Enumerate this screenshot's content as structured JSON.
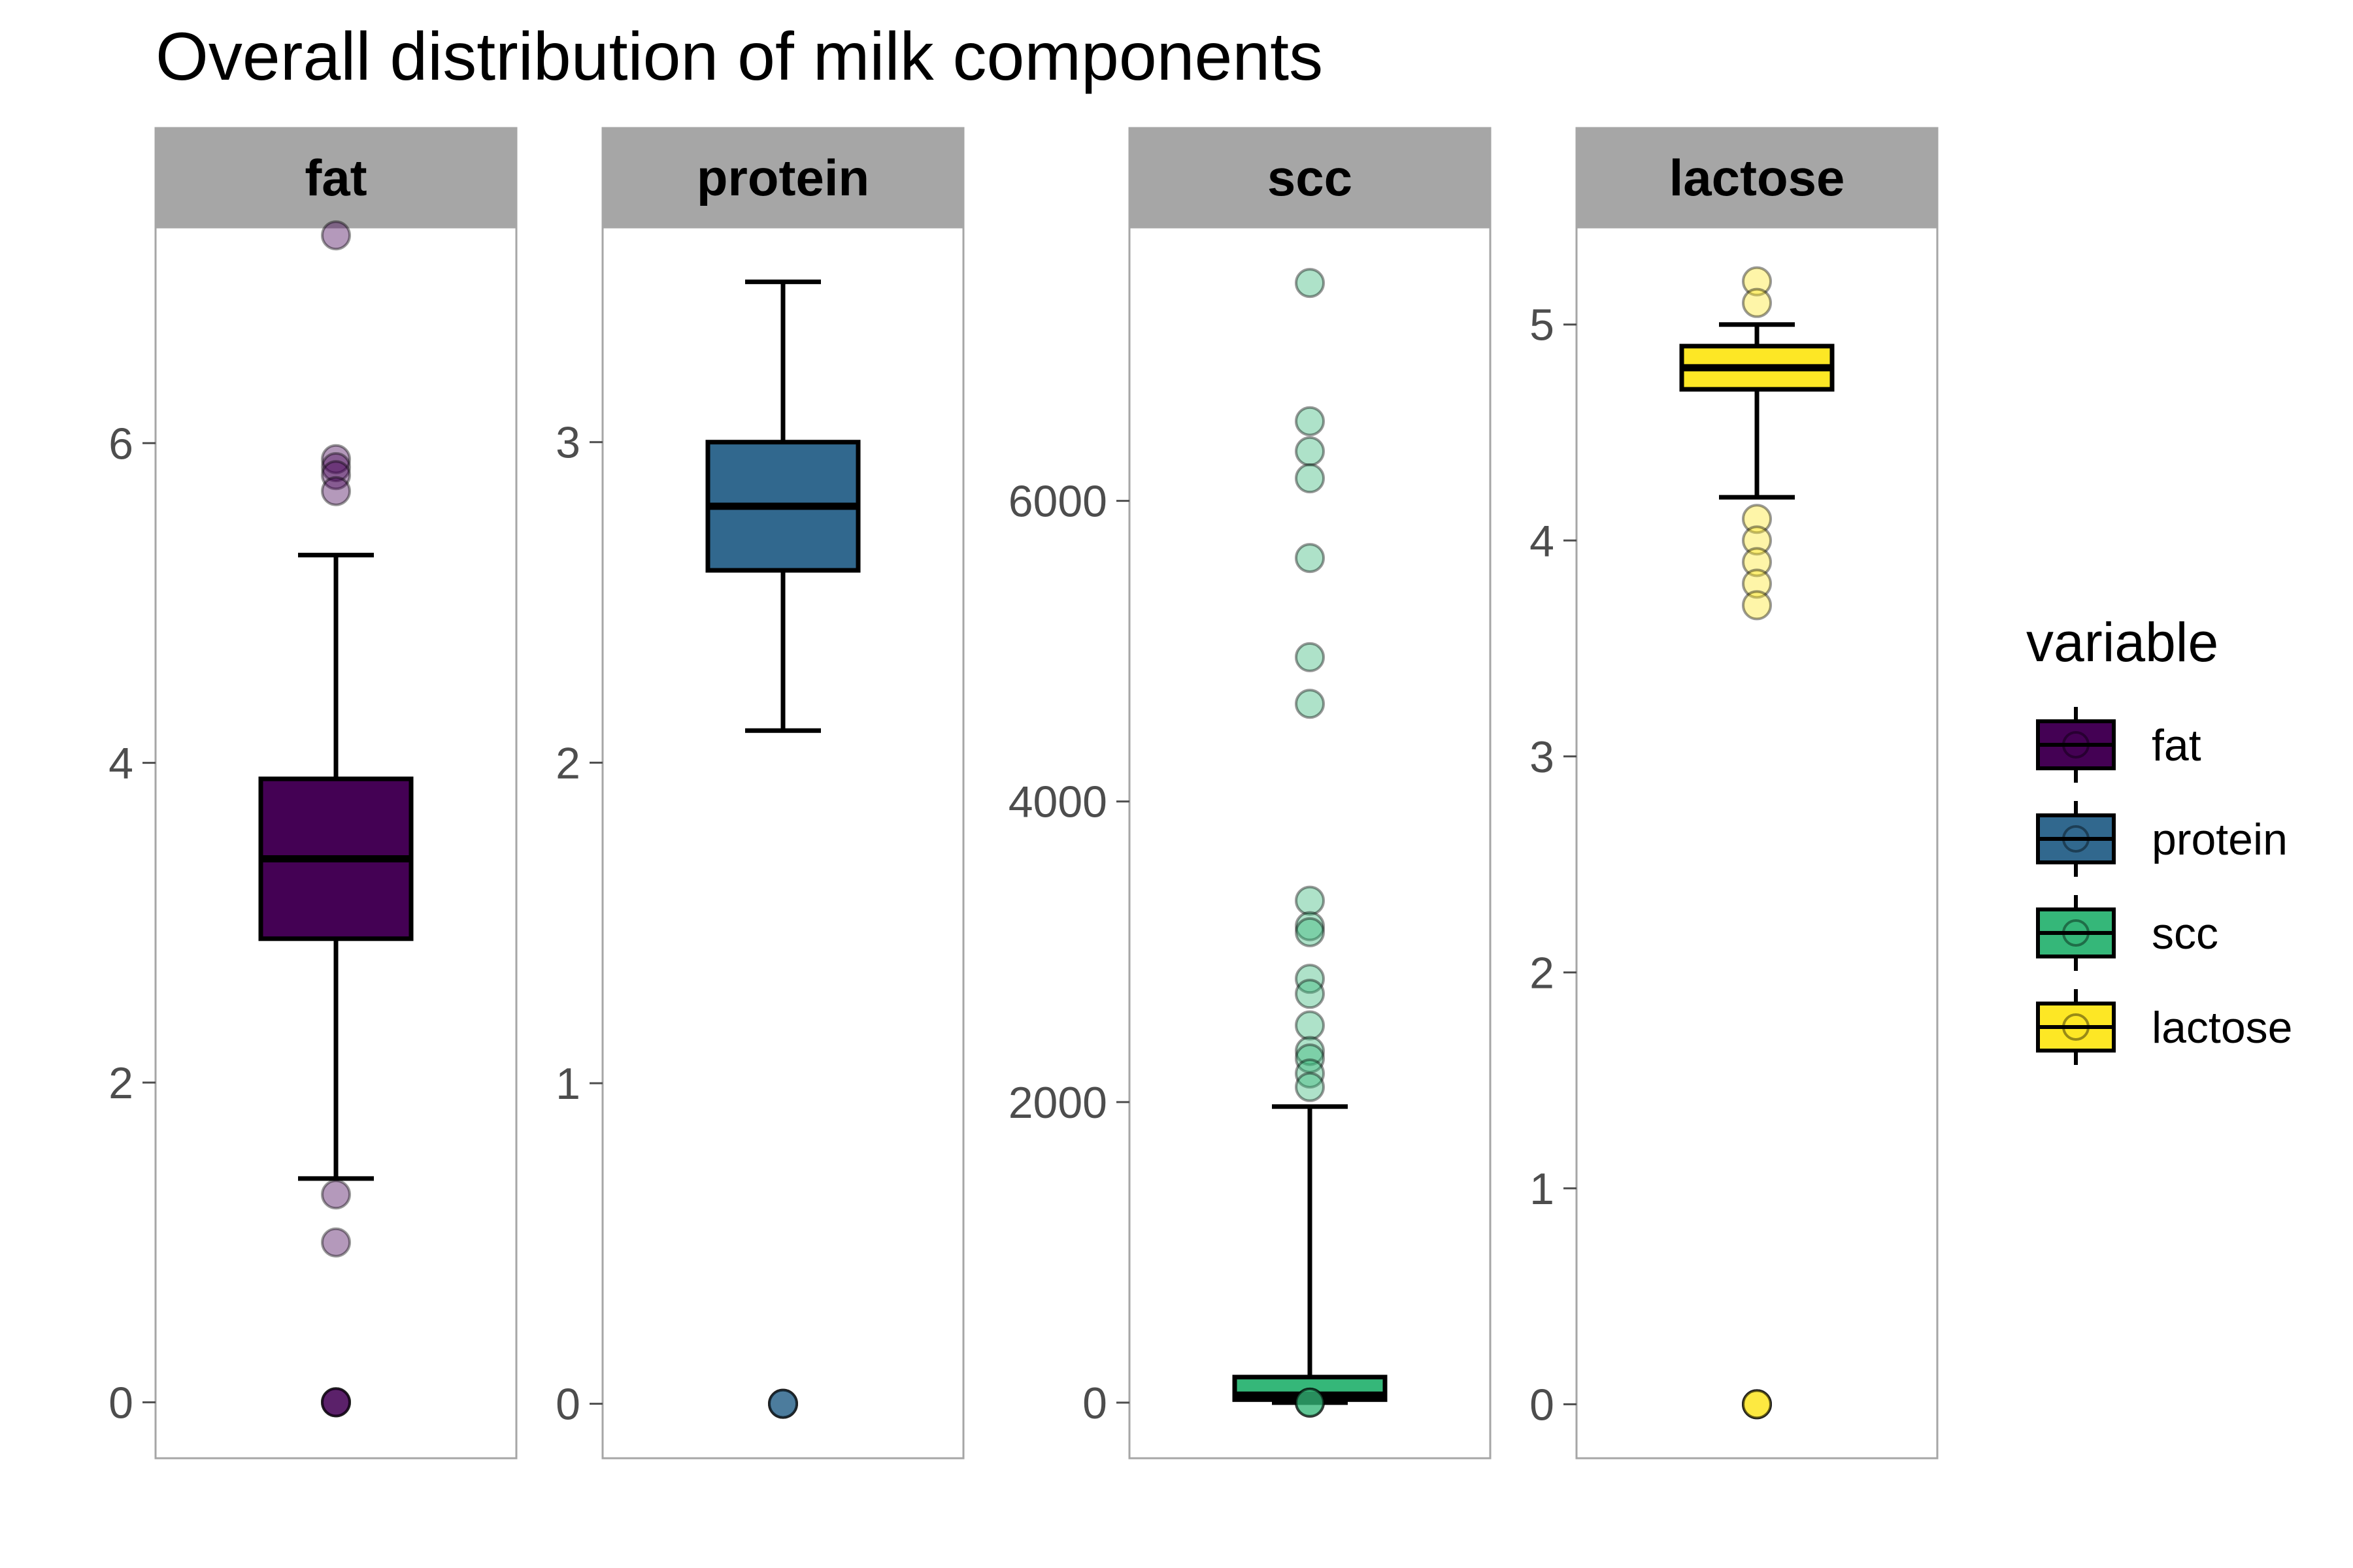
{
  "chart_data": {
    "type": "boxplot",
    "title": "Overall distribution of milk components",
    "facet_scales": "free_y",
    "legend": {
      "title": "variable",
      "position": "right",
      "entries": [
        "fat",
        "protein",
        "scc",
        "lactose"
      ]
    },
    "panels": [
      {
        "name": "fat",
        "color": "#440154",
        "ylim": [
          -0.35,
          7.35
        ],
        "y_ticks": [
          0,
          2,
          4,
          6
        ],
        "y_tick_labels": [
          "0",
          "2",
          "4",
          "6"
        ],
        "box": {
          "lower_whisker": 1.4,
          "q1": 2.9,
          "median": 3.4,
          "q3": 3.9,
          "upper_whisker": 5.3
        },
        "outliers": [
          7.3,
          5.9,
          5.85,
          5.8,
          5.7,
          1.3,
          1.0,
          0,
          0,
          0,
          0
        ]
      },
      {
        "name": "protein",
        "color": "#31688E",
        "ylim": [
          -0.17,
          3.67
        ],
        "y_ticks": [
          0,
          1,
          2,
          3
        ],
        "y_tick_labels": [
          "0",
          "1",
          "2",
          "3"
        ],
        "box": {
          "lower_whisker": 2.1,
          "q1": 2.6,
          "median": 2.8,
          "q3": 3.0,
          "upper_whisker": 3.5
        },
        "outliers": [
          0,
          0,
          0,
          0
        ]
      },
      {
        "name": "scc",
        "color": "#35B779",
        "ylim": [
          -370,
          7820
        ],
        "y_ticks": [
          0,
          2000,
          4000,
          6000
        ],
        "y_tick_labels": [
          "0",
          "2000",
          "4000",
          "6000"
        ],
        "box": {
          "lower_whisker": 0,
          "q1": 20,
          "median": 50,
          "q3": 170,
          "upper_whisker": 1970
        },
        "outliers": [
          7450,
          6530,
          6330,
          6150,
          5620,
          4960,
          4650,
          3340,
          3170,
          3130,
          2820,
          2720,
          2510,
          2340,
          2290,
          2190,
          2100,
          0,
          0,
          0
        ]
      },
      {
        "name": "lactose",
        "color": "#FDE725",
        "ylim": [
          -0.25,
          5.45
        ],
        "y_ticks": [
          0,
          1,
          2,
          3,
          4,
          5
        ],
        "y_tick_labels": [
          "0",
          "1",
          "2",
          "3",
          "4",
          "5"
        ],
        "box": {
          "lower_whisker": 4.2,
          "q1": 4.7,
          "median": 4.8,
          "q3": 4.9,
          "upper_whisker": 5.0
        },
        "outliers": [
          5.2,
          5.1,
          4.1,
          4.0,
          3.9,
          3.8,
          3.7,
          0,
          0,
          0,
          0
        ]
      }
    ]
  }
}
